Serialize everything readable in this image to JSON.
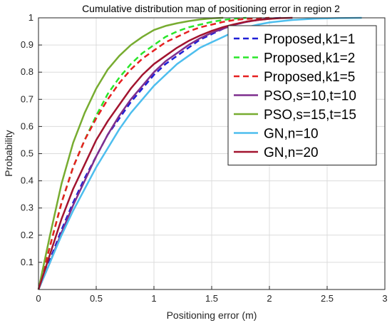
{
  "chart_data": {
    "type": "line",
    "title": "Cumulative distribution map of positioning error in region 2",
    "xlabel": "Positioning error (m)",
    "ylabel": "Probability",
    "xlim": [
      0,
      3
    ],
    "ylim": [
      0,
      1
    ],
    "xticks": [
      "0",
      "0.5",
      "1",
      "1.5",
      "2",
      "2.5",
      "3"
    ],
    "yticks": [
      "0.1",
      "0.2",
      "0.3",
      "0.4",
      "0.5",
      "0.6",
      "0.7",
      "0.8",
      "0.9",
      "1"
    ],
    "grid": true,
    "legend_position": "top-right",
    "series": [
      {
        "name": "Proposed,k1=1",
        "color": "#1f1fd6",
        "dash": "dashed",
        "x": [
          0,
          0.1,
          0.2,
          0.3,
          0.4,
          0.5,
          0.6,
          0.7,
          0.8,
          0.9,
          1.0,
          1.1,
          1.2,
          1.3,
          1.4,
          1.5,
          1.6,
          1.7,
          1.8,
          1.9,
          2.0,
          2.1
        ],
        "y": [
          0,
          0.11,
          0.22,
          0.32,
          0.41,
          0.49,
          0.57,
          0.63,
          0.69,
          0.74,
          0.79,
          0.83,
          0.86,
          0.89,
          0.92,
          0.94,
          0.96,
          0.975,
          0.985,
          0.992,
          0.997,
          1.0
        ]
      },
      {
        "name": "Proposed,k1=2",
        "color": "#29e629",
        "dash": "dashed",
        "x": [
          0,
          0.1,
          0.2,
          0.3,
          0.4,
          0.5,
          0.6,
          0.7,
          0.8,
          0.9,
          1.0,
          1.1,
          1.2,
          1.3,
          1.4,
          1.5,
          1.6,
          1.7,
          1.8
        ],
        "y": [
          0,
          0.16,
          0.32,
          0.45,
          0.55,
          0.64,
          0.72,
          0.78,
          0.83,
          0.87,
          0.9,
          0.93,
          0.95,
          0.965,
          0.975,
          0.985,
          0.992,
          0.997,
          1.0
        ]
      },
      {
        "name": "Proposed,k1=5",
        "color": "#e62020",
        "dash": "dashed",
        "x": [
          0,
          0.1,
          0.2,
          0.3,
          0.4,
          0.5,
          0.6,
          0.7,
          0.8,
          0.9,
          1.0,
          1.1,
          1.2,
          1.3,
          1.4,
          1.5,
          1.6,
          1.7,
          1.8,
          1.9,
          2.0
        ],
        "y": [
          0,
          0.16,
          0.32,
          0.45,
          0.55,
          0.63,
          0.7,
          0.76,
          0.81,
          0.85,
          0.88,
          0.91,
          0.93,
          0.95,
          0.965,
          0.975,
          0.985,
          0.992,
          0.996,
          0.998,
          1.0
        ]
      },
      {
        "name": "PSO,s=10,t=10",
        "color": "#7e2f8e",
        "dash": "solid",
        "x": [
          0,
          0.1,
          0.2,
          0.3,
          0.4,
          0.5,
          0.6,
          0.7,
          0.8,
          0.9,
          1.0,
          1.1,
          1.2,
          1.3,
          1.4,
          1.5,
          1.6,
          1.7,
          1.8,
          1.9,
          2.0,
          2.1
        ],
        "y": [
          0,
          0.1,
          0.21,
          0.31,
          0.4,
          0.49,
          0.57,
          0.64,
          0.7,
          0.75,
          0.8,
          0.84,
          0.87,
          0.9,
          0.925,
          0.945,
          0.96,
          0.975,
          0.985,
          0.992,
          0.997,
          1.0
        ]
      },
      {
        "name": "PSO,s=15,t=15",
        "color": "#77ac30",
        "dash": "solid",
        "x": [
          0,
          0.1,
          0.2,
          0.3,
          0.4,
          0.5,
          0.6,
          0.7,
          0.8,
          0.9,
          1.0,
          1.1,
          1.2,
          1.3,
          1.4,
          1.5,
          1.6
        ],
        "y": [
          0,
          0.2,
          0.39,
          0.54,
          0.65,
          0.74,
          0.81,
          0.86,
          0.9,
          0.93,
          0.955,
          0.97,
          0.98,
          0.988,
          0.994,
          0.998,
          1.0
        ]
      },
      {
        "name": "GN,n=10",
        "color": "#4dbeee",
        "dash": "solid",
        "x": [
          0,
          0.1,
          0.2,
          0.3,
          0.4,
          0.5,
          0.6,
          0.7,
          0.8,
          0.9,
          1.0,
          1.1,
          1.2,
          1.3,
          1.4,
          1.5,
          1.6,
          1.7,
          1.8,
          1.9,
          2.0,
          2.2,
          2.4,
          2.6,
          2.8
        ],
        "y": [
          0,
          0.1,
          0.2,
          0.29,
          0.37,
          0.45,
          0.52,
          0.59,
          0.65,
          0.7,
          0.75,
          0.79,
          0.83,
          0.86,
          0.89,
          0.91,
          0.93,
          0.95,
          0.965,
          0.975,
          0.983,
          0.992,
          0.997,
          0.999,
          1.0
        ]
      },
      {
        "name": "GN,n=20",
        "color": "#a2142f",
        "dash": "solid",
        "x": [
          0,
          0.1,
          0.2,
          0.3,
          0.4,
          0.5,
          0.6,
          0.7,
          0.8,
          0.9,
          1.0,
          1.1,
          1.2,
          1.3,
          1.4,
          1.5,
          1.6,
          1.7,
          1.8,
          1.9,
          2.0,
          2.1,
          2.2
        ],
        "y": [
          0,
          0.13,
          0.26,
          0.37,
          0.46,
          0.55,
          0.62,
          0.68,
          0.74,
          0.79,
          0.83,
          0.86,
          0.89,
          0.915,
          0.935,
          0.952,
          0.966,
          0.977,
          0.986,
          0.992,
          0.996,
          0.999,
          1.0
        ]
      }
    ]
  }
}
